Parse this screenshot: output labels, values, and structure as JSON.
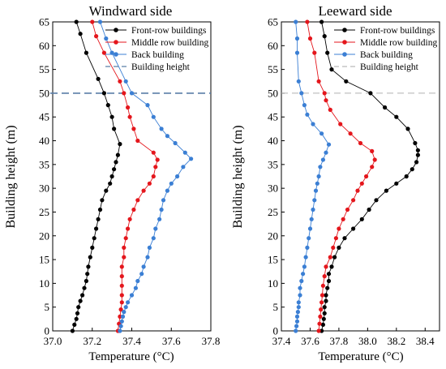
{
  "colors": {
    "front": "#000000",
    "middle": "#e4161c",
    "back": "#3b7fd4",
    "height_line": "#5b7fa8"
  },
  "chart_data": [
    {
      "type": "line",
      "title": "Windward side",
      "xlabel": "Temperature (°C)",
      "ylabel": "Building height (m)",
      "xlim": [
        37.0,
        37.8
      ],
      "ylim": [
        0,
        65
      ],
      "xticks": [
        37.0,
        37.2,
        37.4,
        37.6,
        37.8
      ],
      "yticks": [
        0,
        5,
        10,
        15,
        20,
        25,
        30,
        35,
        40,
        45,
        50,
        55,
        60,
        65
      ],
      "grid": false,
      "legend": "top-right",
      "building_height": 50,
      "building_height_style": "dashed-bold",
      "series": [
        {
          "name": "Front-row buildings",
          "color": "#000000",
          "points": [
            [
              37.1,
              0
            ],
            [
              37.11,
              1.3
            ],
            [
              37.12,
              2.5
            ],
            [
              37.125,
              3.7
            ],
            [
              37.13,
              5
            ],
            [
              37.14,
              6.3
            ],
            [
              37.15,
              7.5
            ],
            [
              37.16,
              9
            ],
            [
              37.17,
              10.5
            ],
            [
              37.175,
              12
            ],
            [
              37.18,
              13.5
            ],
            [
              37.19,
              15.5
            ],
            [
              37.2,
              17.5
            ],
            [
              37.21,
              19.5
            ],
            [
              37.22,
              21.5
            ],
            [
              37.23,
              23.5
            ],
            [
              37.24,
              25.5
            ],
            [
              37.25,
              27.5
            ],
            [
              37.27,
              29.5
            ],
            [
              37.29,
              31
            ],
            [
              37.3,
              32.5
            ],
            [
              37.31,
              34
            ],
            [
              37.32,
              35.5
            ],
            [
              37.33,
              37
            ],
            [
              37.34,
              39.3
            ],
            [
              37.31,
              42.5
            ],
            [
              37.3,
              45
            ],
            [
              37.28,
              47.5
            ],
            [
              37.26,
              50
            ],
            [
              37.23,
              53
            ],
            [
              37.17,
              58.5
            ],
            [
              37.14,
              62.5
            ],
            [
              37.12,
              65
            ]
          ]
        },
        {
          "name": "Middle row building",
          "color": "#e4161c",
          "points": [
            [
              37.33,
              0
            ],
            [
              37.335,
              1.5
            ],
            [
              37.34,
              3
            ],
            [
              37.345,
              4.5
            ],
            [
              37.35,
              6
            ],
            [
              37.35,
              7.5
            ],
            [
              37.35,
              9.5
            ],
            [
              37.35,
              11.5
            ],
            [
              37.35,
              13.5
            ],
            [
              37.36,
              15.5
            ],
            [
              37.36,
              17.5
            ],
            [
              37.37,
              19.5
            ],
            [
              37.38,
              21.5
            ],
            [
              37.39,
              23.5
            ],
            [
              37.41,
              25.5
            ],
            [
              37.43,
              27.5
            ],
            [
              37.46,
              29.5
            ],
            [
              37.49,
              31
            ],
            [
              37.51,
              32.5
            ],
            [
              37.52,
              34.5
            ],
            [
              37.53,
              36
            ],
            [
              37.51,
              37.5
            ],
            [
              37.43,
              40
            ],
            [
              37.41,
              42.5
            ],
            [
              37.39,
              45
            ],
            [
              37.38,
              47
            ],
            [
              37.36,
              50
            ],
            [
              37.34,
              52.5
            ],
            [
              37.26,
              58.5
            ],
            [
              37.22,
              62
            ],
            [
              37.2,
              65
            ]
          ]
        },
        {
          "name": "Back building",
          "color": "#3b7fd4",
          "points": [
            [
              37.34,
              0
            ],
            [
              37.345,
              1
            ],
            [
              37.35,
              2
            ],
            [
              37.355,
              3
            ],
            [
              37.36,
              4
            ],
            [
              37.37,
              5
            ],
            [
              37.38,
              6
            ],
            [
              37.4,
              7.5
            ],
            [
              37.42,
              9
            ],
            [
              37.43,
              10.5
            ],
            [
              37.45,
              12
            ],
            [
              37.46,
              13.5
            ],
            [
              37.48,
              15.5
            ],
            [
              37.49,
              17.5
            ],
            [
              37.51,
              19.5
            ],
            [
              37.52,
              21.5
            ],
            [
              37.54,
              23.5
            ],
            [
              37.55,
              25.5
            ],
            [
              37.56,
              27.5
            ],
            [
              37.58,
              29.5
            ],
            [
              37.6,
              31
            ],
            [
              37.63,
              32.5
            ],
            [
              37.66,
              34.5
            ],
            [
              37.7,
              36.2
            ],
            [
              37.67,
              37.5
            ],
            [
              37.62,
              39.5
            ],
            [
              37.58,
              41
            ],
            [
              37.55,
              42.5
            ],
            [
              37.51,
              45
            ],
            [
              37.48,
              47.5
            ],
            [
              37.4,
              50
            ],
            [
              37.37,
              52.5
            ],
            [
              37.3,
              58.5
            ],
            [
              37.27,
              61.5
            ],
            [
              37.24,
              65
            ]
          ]
        }
      ]
    },
    {
      "type": "line",
      "title": "Leeward side",
      "xlabel": "Temperature (°C)",
      "ylabel": "Building height (m)",
      "xlim": [
        37.4,
        38.5
      ],
      "ylim": [
        0,
        65
      ],
      "xticks": [
        37.4,
        37.6,
        37.8,
        38.0,
        38.2,
        38.4
      ],
      "yticks": [
        0,
        5,
        10,
        15,
        20,
        25,
        30,
        35,
        40,
        45,
        50,
        55,
        60,
        65
      ],
      "grid": false,
      "legend": "top-right",
      "building_height": 50,
      "building_height_style": "dashed-light",
      "series": [
        {
          "name": "Front-row buildings",
          "color": "#000000",
          "points": [
            [
              37.68,
              0
            ],
            [
              37.69,
              1.3
            ],
            [
              37.695,
              2.5
            ],
            [
              37.7,
              3.7
            ],
            [
              37.7,
              5
            ],
            [
              37.71,
              6.3
            ],
            [
              37.71,
              7.5
            ],
            [
              37.72,
              9
            ],
            [
              37.73,
              10.5
            ],
            [
              37.73,
              12
            ],
            [
              37.75,
              13.5
            ],
            [
              37.77,
              15.5
            ],
            [
              37.8,
              17.5
            ],
            [
              37.84,
              19.5
            ],
            [
              37.9,
              21.5
            ],
            [
              37.96,
              23.5
            ],
            [
              38.01,
              25.5
            ],
            [
              38.06,
              27.5
            ],
            [
              38.13,
              29.5
            ],
            [
              38.2,
              31
            ],
            [
              38.27,
              32.5
            ],
            [
              38.31,
              34
            ],
            [
              38.34,
              35.5
            ],
            [
              38.35,
              37
            ],
            [
              38.35,
              38
            ],
            [
              38.33,
              39.5
            ],
            [
              38.28,
              42.5
            ],
            [
              38.2,
              45
            ],
            [
              38.12,
              47
            ],
            [
              38.02,
              50
            ],
            [
              37.85,
              52.5
            ],
            [
              37.75,
              55
            ],
            [
              37.72,
              58.5
            ],
            [
              37.7,
              62
            ],
            [
              37.68,
              65
            ]
          ]
        },
        {
          "name": "Middle row building",
          "color": "#e4161c",
          "points": [
            [
              37.66,
              0
            ],
            [
              37.665,
              1.5
            ],
            [
              37.67,
              3
            ],
            [
              37.675,
              4.5
            ],
            [
              37.68,
              6
            ],
            [
              37.685,
              7.5
            ],
            [
              37.69,
              9.5
            ],
            [
              37.7,
              11.5
            ],
            [
              37.71,
              13.5
            ],
            [
              37.74,
              15.5
            ],
            [
              37.76,
              17.5
            ],
            [
              37.78,
              19.5
            ],
            [
              37.8,
              21.5
            ],
            [
              37.83,
              23.5
            ],
            [
              37.86,
              25.5
            ],
            [
              37.9,
              27.5
            ],
            [
              37.93,
              29.5
            ],
            [
              37.96,
              31
            ],
            [
              37.99,
              32.5
            ],
            [
              38.03,
              34.5
            ],
            [
              38.05,
              36
            ],
            [
              38.03,
              37.8
            ],
            [
              37.95,
              39.5
            ],
            [
              37.88,
              41.5
            ],
            [
              37.81,
              43.5
            ],
            [
              37.74,
              46.5
            ],
            [
              37.71,
              48.5
            ],
            [
              37.7,
              50
            ],
            [
              37.66,
              52.5
            ],
            [
              37.63,
              58.5
            ],
            [
              37.6,
              61.5
            ],
            [
              37.58,
              65
            ]
          ]
        },
        {
          "name": "Back building",
          "color": "#3b7fd4",
          "points": [
            [
              37.5,
              0
            ],
            [
              37.505,
              1
            ],
            [
              37.51,
              2
            ],
            [
              37.51,
              3
            ],
            [
              37.515,
              4
            ],
            [
              37.52,
              5
            ],
            [
              37.52,
              6
            ],
            [
              37.53,
              7.5
            ],
            [
              37.53,
              9
            ],
            [
              37.54,
              10.5
            ],
            [
              37.55,
              12
            ],
            [
              37.56,
              13.5
            ],
            [
              37.57,
              15.5
            ],
            [
              37.58,
              17.5
            ],
            [
              37.59,
              19.5
            ],
            [
              37.6,
              21.5
            ],
            [
              37.61,
              23.5
            ],
            [
              37.62,
              25.5
            ],
            [
              37.63,
              27.5
            ],
            [
              37.64,
              29.5
            ],
            [
              37.65,
              31
            ],
            [
              37.66,
              32.5
            ],
            [
              37.67,
              34.5
            ],
            [
              37.69,
              36
            ],
            [
              37.71,
              37.5
            ],
            [
              37.73,
              39.2
            ],
            [
              37.68,
              41.5
            ],
            [
              37.62,
              43.5
            ],
            [
              37.58,
              45.5
            ],
            [
              37.56,
              47.5
            ],
            [
              37.54,
              50
            ],
            [
              37.52,
              52.5
            ],
            [
              37.51,
              58.5
            ],
            [
              37.51,
              61.5
            ],
            [
              37.5,
              65
            ]
          ]
        }
      ]
    }
  ]
}
